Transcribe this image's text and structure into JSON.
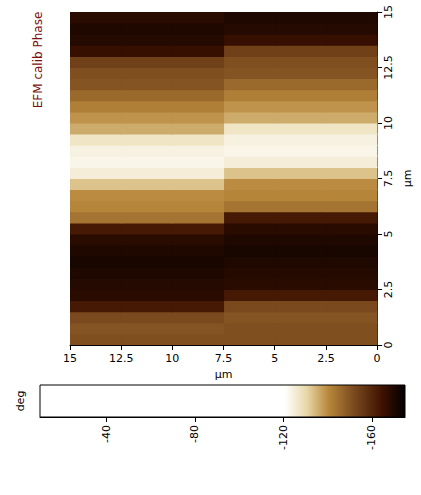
{
  "chart_data": {
    "type": "heatmap",
    "title": "EFM calib Phase",
    "x_label": "µm",
    "y_label": "µm",
    "xlim": [
      0,
      15
    ],
    "xticks": [
      0,
      2.5,
      5,
      7.5,
      10,
      12.5,
      15
    ],
    "ylim": [
      0,
      15
    ],
    "yticks": [
      0,
      2.5,
      5,
      7.5,
      10,
      12.5,
      15
    ],
    "x": [
      1.25,
      3.75,
      6.25,
      8.75,
      11.25,
      13.75
    ],
    "y": [
      0.25,
      0.75,
      1.25,
      1.75,
      2.25,
      2.75,
      3.25,
      3.75,
      4.25,
      4.75,
      5.25,
      5.75,
      6.25,
      6.75,
      7.25,
      7.75,
      8.25,
      8.75,
      9.25,
      9.75,
      10.25,
      10.75,
      11.25,
      11.75,
      12.25,
      12.75,
      13.25,
      13.75,
      14.25,
      14.75
    ],
    "values": [
      [
        -151,
        -151,
        -151,
        -151,
        -151,
        -151
      ],
      [
        -151,
        -151,
        -151,
        -150,
        -150,
        -150
      ],
      [
        -150,
        -150,
        -150,
        -152,
        -152,
        -152
      ],
      [
        -152,
        -152,
        -152,
        -163,
        -163,
        -163
      ],
      [
        -163,
        -163,
        -163,
        -168,
        -168,
        -168
      ],
      [
        -168,
        -168,
        -168,
        -169,
        -169,
        -169
      ],
      [
        -169,
        -169,
        -169,
        -170,
        -170,
        -170
      ],
      [
        -170,
        -170,
        -170,
        -171,
        -171,
        -171
      ],
      [
        -171,
        -171,
        -171,
        -170,
        -170,
        -170
      ],
      [
        -170,
        -170,
        -170,
        -168,
        -168,
        -168
      ],
      [
        -168,
        -168,
        -168,
        -163,
        -163,
        -163
      ],
      [
        -163,
        -163,
        -163,
        -144,
        -144,
        -144
      ],
      [
        -144,
        -144,
        -144,
        -141,
        -141,
        -141
      ],
      [
        -141,
        -141,
        -141,
        -140,
        -140,
        -140
      ],
      [
        -140,
        -140,
        -140,
        -133,
        -133,
        -133
      ],
      [
        -133,
        -133,
        -133,
        -125,
        -125,
        -125
      ],
      [
        -125,
        -125,
        -125,
        -123,
        -123,
        -123
      ],
      [
        -123,
        -123,
        -123,
        -124,
        -124,
        -124
      ],
      [
        -124,
        -124,
        -124,
        -127,
        -127,
        -127
      ],
      [
        -127,
        -127,
        -127,
        -136,
        -136,
        -136
      ],
      [
        -136,
        -136,
        -136,
        -139,
        -139,
        -139
      ],
      [
        -139,
        -139,
        -139,
        -142,
        -142,
        -142
      ],
      [
        -142,
        -142,
        -142,
        -146,
        -146,
        -146
      ],
      [
        -146,
        -146,
        -146,
        -150,
        -150,
        -150
      ],
      [
        -150,
        -150,
        -150,
        -151,
        -151,
        -151
      ],
      [
        -151,
        -151,
        -151,
        -154,
        -154,
        -154
      ],
      [
        -154,
        -154,
        -154,
        -166,
        -166,
        -166
      ],
      [
        -166,
        -166,
        -166,
        -169,
        -169,
        -169
      ],
      [
        -169,
        -169,
        -169,
        -170,
        -170,
        -170
      ],
      [
        -170,
        -170,
        -170,
        -168,
        -168,
        -168
      ]
    ],
    "colorbar": {
      "label": "deg",
      "range": [
        -175,
        -10
      ],
      "ticks": [
        -40,
        -80,
        -120,
        -160
      ]
    }
  }
}
